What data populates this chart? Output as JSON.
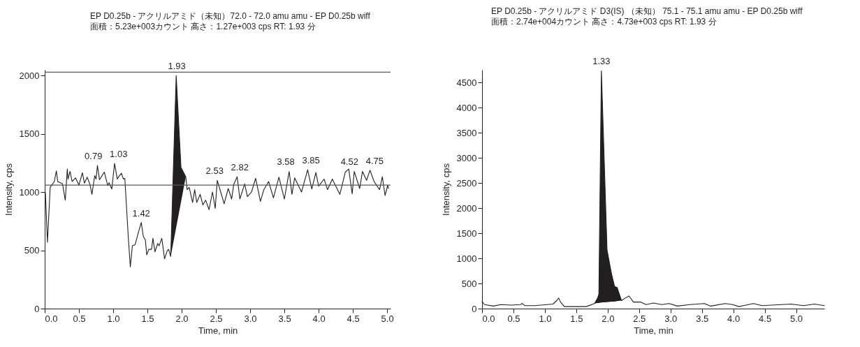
{
  "chart_data": [
    {
      "type": "line",
      "title": "EP D0.25b - アクリルアミド（未知）72.0 - 72.0 amu amu - EP D0.25b wiff",
      "subtitle": "面積：5.23e+003カウント 高さ：1.27e+003 cps RT: 1.93 分",
      "xlabel": "Time, min",
      "ylabel": "Intensity, cps",
      "x": [
        0.01,
        0.04,
        0.08,
        0.14,
        0.17,
        0.19,
        0.26,
        0.3,
        0.33,
        0.34,
        0.37,
        0.4,
        0.45,
        0.5,
        0.55,
        0.58,
        0.62,
        0.66,
        0.69,
        0.73,
        0.75,
        0.77,
        0.8,
        0.87,
        0.92,
        0.94,
        0.98,
        1.02,
        1.06,
        1.08,
        1.12,
        1.15,
        1.17,
        1.22,
        1.25,
        1.28,
        1.32,
        1.37,
        1.41,
        1.44,
        1.47,
        1.49,
        1.52,
        1.56,
        1.58,
        1.61,
        1.65,
        1.67,
        1.71,
        1.75,
        1.79,
        1.81,
        1.84,
        1.92,
        1.99,
        2.06,
        2.08,
        2.11,
        2.16,
        2.19,
        2.22,
        2.27,
        2.31,
        2.35,
        2.4,
        2.45,
        2.49,
        2.52,
        2.57,
        2.62,
        2.68,
        2.73,
        2.76,
        2.81,
        2.85,
        2.92,
        2.96,
        3.02,
        3.08,
        3.15,
        3.2,
        3.27,
        3.34,
        3.42,
        3.5,
        3.57,
        3.61,
        3.65,
        3.75,
        3.84,
        3.9,
        3.96,
        4.0,
        4.08,
        4.13,
        4.2,
        4.31,
        4.39,
        4.44,
        4.49,
        4.52,
        4.6,
        4.64,
        4.7,
        4.75,
        4.81,
        4.89,
        4.93,
        4.97,
        5.01,
        5.02
      ],
      "series": [
        {
          "color": "#231f20",
          "values": [
            997,
            569,
            1041,
            1091,
            1182,
            1091,
            1071,
            931,
            1198,
            1112,
            1178,
            1091,
            1122,
            1061,
            1166,
            1077,
            1128,
            1067,
            981,
            1142,
            1112,
            1228,
            1106,
            1172,
            1057,
            1081,
            1027,
            1246,
            1112,
            1132,
            1162,
            1112,
            1118,
            619,
            358,
            539,
            549,
            659,
            740,
            619,
            589,
            462,
            509,
            509,
            603,
            488,
            559,
            539,
            603,
            428,
            498,
            509,
            448,
            2000,
            1212,
            1132,
            1021,
            1041,
            911,
            1021,
            911,
            981,
            890,
            931,
            850,
            1001,
            860,
            1101,
            1001,
            900,
            1031,
            941,
            1065,
            1132,
            941,
            1071,
            961,
            1001,
            1118,
            921,
            1021,
            1091,
            951,
            1128,
            941,
            1178,
            981,
            1122,
            1001,
            1192,
            1027,
            1168,
            1051,
            1112,
            1021,
            1112,
            981,
            1172,
            1198,
            985,
            1178,
            1031,
            1178,
            1101,
            1188,
            1091,
            1021,
            1132,
            971,
            1061,
            1031
          ],
          "lower": [
            null,
            null,
            null,
            null,
            null,
            null,
            null,
            null,
            null,
            null,
            null,
            null,
            null,
            null,
            null,
            null,
            null,
            null,
            null,
            null,
            null,
            null,
            null,
            null,
            null,
            null,
            null,
            null,
            null,
            null,
            null,
            null,
            null,
            null,
            null,
            null,
            null,
            null,
            null,
            null,
            null,
            null,
            null,
            null,
            null,
            null,
            null,
            null,
            null,
            null,
            null,
            null,
            448,
            697,
            914,
            1132,
            null,
            null,
            null,
            null,
            null,
            null,
            null,
            null,
            null,
            null,
            null,
            null,
            null,
            null,
            null,
            null,
            null,
            null,
            null,
            null,
            null,
            null,
            null,
            null,
            null,
            null,
            null,
            null,
            null,
            null,
            null,
            null,
            null,
            null,
            null,
            null,
            null,
            null,
            null,
            null,
            null,
            null,
            null,
            null,
            null,
            null,
            null,
            null,
            null,
            null,
            null,
            null,
            null,
            null,
            null
          ],
          "upper": [
            null,
            null,
            null,
            null,
            null,
            null,
            null,
            null,
            null,
            null,
            null,
            null,
            null,
            null,
            null,
            null,
            null,
            null,
            null,
            null,
            null,
            null,
            null,
            null,
            null,
            null,
            null,
            null,
            null,
            null,
            null,
            null,
            null,
            null,
            null,
            null,
            null,
            null,
            null,
            null,
            null,
            null,
            null,
            null,
            null,
            null,
            null,
            null,
            null,
            null,
            null,
            null,
            448,
            2000,
            1212,
            1132,
            null,
            null,
            null,
            null,
            null,
            null,
            null,
            null,
            null,
            null,
            null,
            null,
            null,
            null,
            null,
            null,
            null,
            null,
            null,
            null,
            null,
            null,
            null,
            null,
            null,
            null,
            null,
            null,
            null,
            null,
            null,
            null,
            null,
            null,
            null,
            null,
            null,
            null,
            null,
            null,
            null,
            null,
            null,
            null,
            null,
            null,
            null,
            null,
            null,
            null,
            null,
            null,
            null,
            null,
            null
          ]
        }
      ],
      "xlim": [
        0,
        5.05
      ],
      "xticks": [
        {
          "value": 0,
          "label": "0.0"
        },
        {
          "value": 0.5,
          "label": "0.5"
        },
        {
          "value": 1,
          "label": "1.0"
        },
        {
          "value": 1.5,
          "label": "1.5"
        },
        {
          "value": 2,
          "label": "2.0"
        },
        {
          "value": 2.5,
          "label": "2.5"
        },
        {
          "value": 3,
          "label": "3.0"
        },
        {
          "value": 3.5,
          "label": "3.5"
        },
        {
          "value": 4,
          "label": "4.0"
        },
        {
          "value": 4.5,
          "label": "4.5"
        },
        {
          "value": 5,
          "label": "5.0"
        }
      ],
      "ylim": [
        0,
        2050
      ],
      "yticks": [
        0,
        500,
        1000,
        1500,
        2000
      ],
      "ref_lines": [
        {
          "axis": "y",
          "value": 2030,
          "color": "#58595b"
        },
        {
          "axis": "y",
          "value": 1060,
          "color": "#58595b"
        }
      ],
      "annotations": [
        {
          "text": "1.93",
          "x": 1.93,
          "y": 2000
        },
        {
          "text": "0.79",
          "x": 0.77,
          "y": 1228
        },
        {
          "text": "1.03",
          "x": 1.02,
          "y": 1246
        },
        {
          "text": "1.42",
          "x": 1.41,
          "y": 740
        },
        {
          "text": "2.53",
          "x": 2.52,
          "y": 1101
        },
        {
          "text": "2.82",
          "x": 2.81,
          "y": 1132
        },
        {
          "text": "3.58",
          "x": 3.57,
          "y": 1178
        },
        {
          "text": "3.85",
          "x": 3.84,
          "y": 1192
        },
        {
          "text": "4.52",
          "x": 4.52,
          "y": 1178
        },
        {
          "text": "4.75",
          "x": 4.75,
          "y": 1188
        }
      ]
    },
    {
      "type": "line",
      "title": "EP D0.25b - アクリルアミド D3(IS) （未知） 75.1 - 75.1 amu amu - EP D0.25b wiff",
      "subtitle": "面積：2.74e+004カウント 高さ：4.73e+003 cps RT: 1.93 分",
      "xlabel": "Time, min",
      "ylabel": "Intensity, cps",
      "x": [
        0.0,
        0.04,
        0.18,
        0.3,
        0.47,
        0.61,
        0.64,
        0.68,
        0.84,
        1.13,
        1.19,
        1.22,
        1.25,
        1.31,
        1.66,
        1.79,
        1.84,
        1.86,
        1.9,
        1.99,
        2.06,
        2.11,
        2.15,
        2.22,
        2.28,
        2.34,
        2.41,
        2.53,
        2.61,
        2.73,
        2.86,
        2.98,
        3.11,
        3.31,
        3.54,
        3.64,
        3.87,
        3.99,
        4.09,
        4.16,
        4.32,
        4.46,
        4.92,
        5.12,
        5.29,
        5.45
      ],
      "series": [
        {
          "color": "#231f20",
          "values": [
            140,
            80,
            50,
            80,
            70,
            80,
            100,
            60,
            60,
            90,
            160,
            210,
            130,
            40,
            40,
            100,
            210,
            290,
            4730,
            1170,
            700,
            440,
            420,
            160,
            210,
            250,
            130,
            130,
            80,
            110,
            80,
            100,
            50,
            80,
            100,
            50,
            100,
            80,
            40,
            60,
            100,
            60,
            90,
            60,
            90,
            60
          ],
          "lower": [
            null,
            null,
            null,
            null,
            null,
            null,
            null,
            null,
            null,
            null,
            null,
            null,
            null,
            null,
            null,
            100,
            110,
            110,
            120,
            130,
            140,
            140,
            150,
            160,
            null,
            null,
            null,
            null,
            null,
            null,
            null,
            null,
            null,
            null,
            null,
            null,
            null,
            null,
            null,
            null,
            null,
            null,
            null,
            null,
            null,
            null
          ],
          "upper": [
            null,
            null,
            null,
            null,
            null,
            null,
            null,
            null,
            null,
            null,
            null,
            null,
            null,
            null,
            null,
            100,
            210,
            290,
            4730,
            1170,
            700,
            440,
            420,
            160,
            null,
            null,
            null,
            null,
            null,
            null,
            null,
            null,
            null,
            null,
            null,
            null,
            null,
            null,
            null,
            null,
            null,
            null,
            null,
            null,
            null,
            null
          ]
        }
      ],
      "xlim": [
        0,
        5.45
      ],
      "xticks": [
        {
          "value": 0,
          "label": "0.0"
        },
        {
          "value": 0.5,
          "label": "0.5"
        },
        {
          "value": 1,
          "label": "1.0"
        },
        {
          "value": 1.5,
          "label": "1.5"
        },
        {
          "value": 2,
          "label": "2.0"
        },
        {
          "value": 2.5,
          "label": "2.5"
        },
        {
          "value": 3,
          "label": "3.0"
        },
        {
          "value": 3.5,
          "label": "3.5"
        },
        {
          "value": 4,
          "label": "4.0"
        },
        {
          "value": 4.5,
          "label": "4.5"
        },
        {
          "value": 5,
          "label": "5.0"
        }
      ],
      "ylim": [
        0,
        4750
      ],
      "yticks": [
        0,
        500,
        1000,
        1500,
        2000,
        2500,
        3000,
        3500,
        4000,
        4500
      ],
      "annotations": [
        {
          "text": "1.33",
          "x": 1.9,
          "y": 4730
        }
      ]
    }
  ]
}
